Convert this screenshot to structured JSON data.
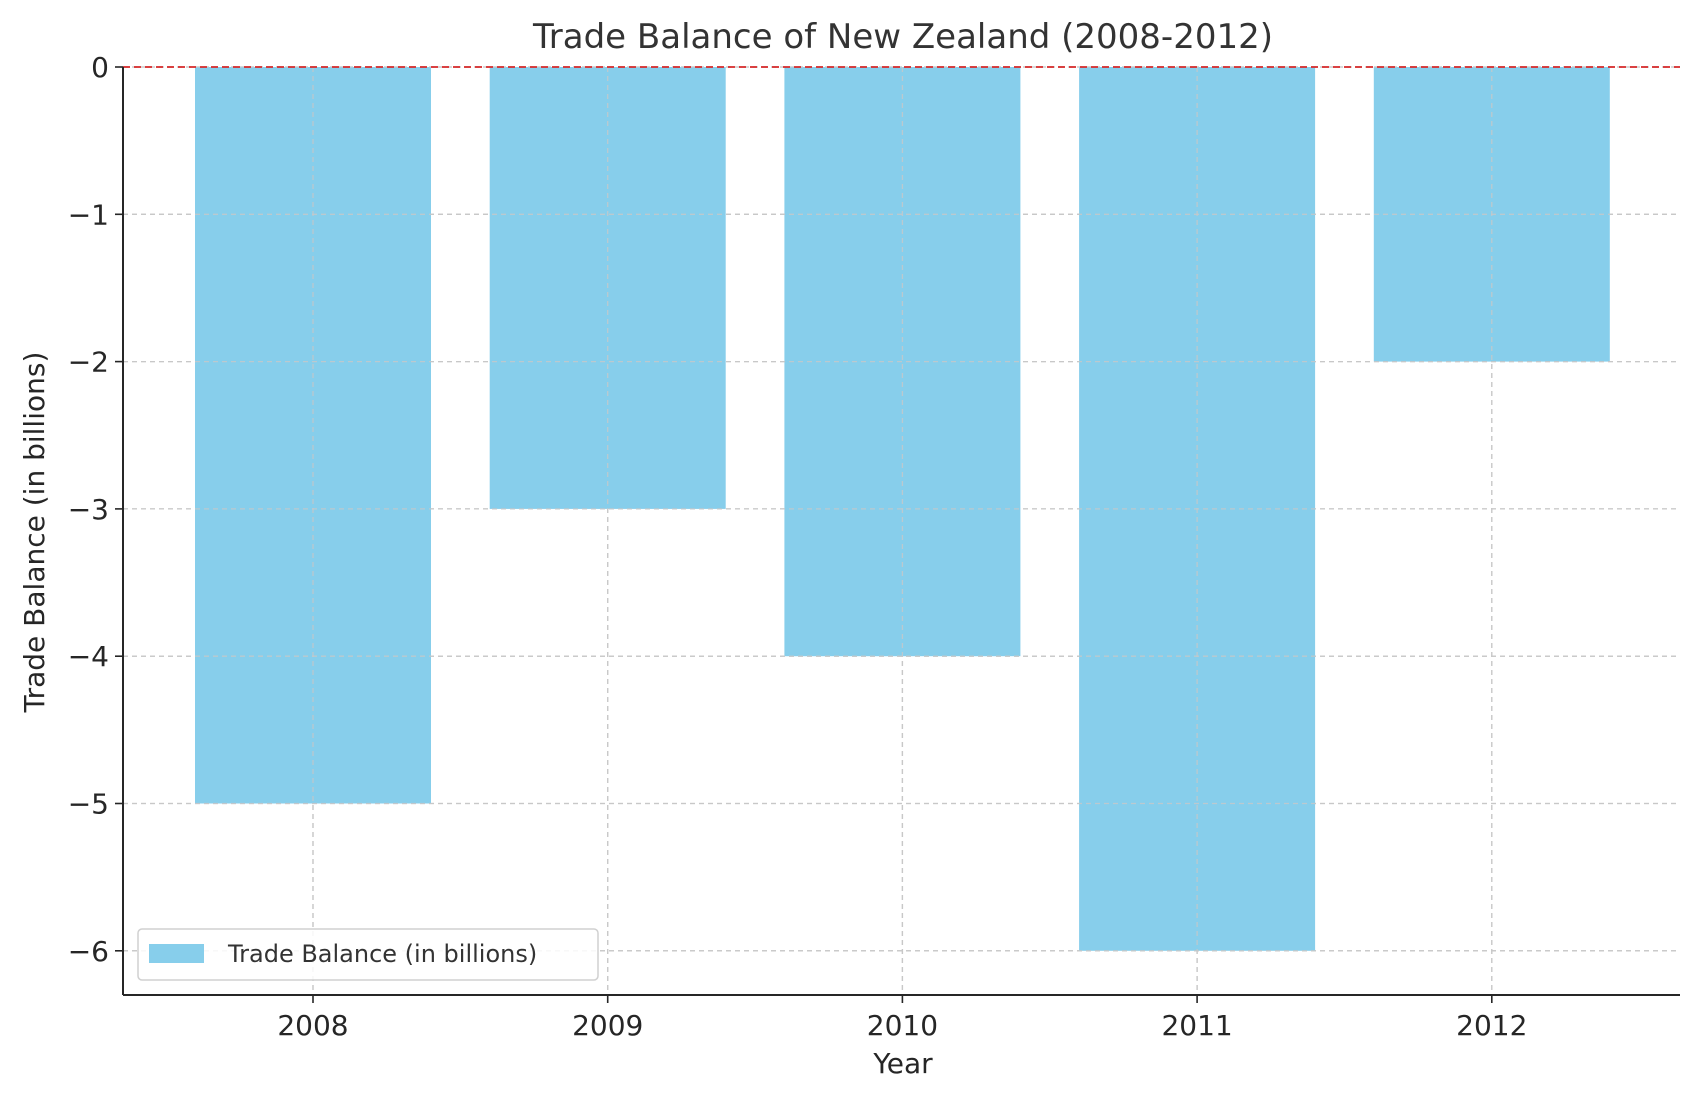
{
  "chart_data": {
    "type": "bar",
    "title": "Trade Balance of New Zealand (2008-2012)",
    "xlabel": "Year",
    "ylabel": "Trade Balance (in billions)",
    "categories": [
      "2008",
      "2009",
      "2010",
      "2011",
      "2012"
    ],
    "series": [
      {
        "name": "Trade Balance (in billions)",
        "values": [
          -5,
          -3,
          -4,
          -6,
          -2
        ]
      }
    ],
    "ylim": [
      -6.3,
      0
    ],
    "yticks": [
      0,
      -1,
      -2,
      -3,
      -4,
      -5,
      -6
    ],
    "ytick_labels": [
      "0",
      "−1",
      "−2",
      "−3",
      "−4",
      "−5",
      "−6"
    ],
    "grid": true,
    "reference_line": {
      "value": 0,
      "style": "dashed",
      "color": "#d62728"
    },
    "legend": {
      "position": "lower-left",
      "entries": [
        "Trade Balance (in billions)"
      ]
    },
    "colors": {
      "bar": "#87ceeb",
      "grid": "#c8c8c8",
      "axis": "#262626"
    }
  }
}
